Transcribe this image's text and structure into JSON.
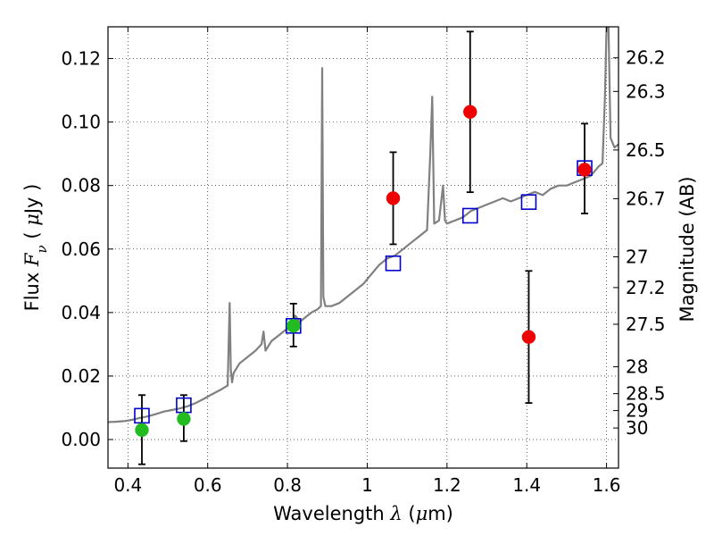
{
  "chart_data": {
    "type": "scatter",
    "xlabel": {
      "pre": "Wavelength  ",
      "sym": "λ",
      "post": " (",
      "mu": "μ",
      "unit": "m)"
    },
    "ylabel": {
      "pre": "Flux  ",
      "sym": "F",
      "sub": "ν",
      "post": "  ( ",
      "mu": "μ",
      "unit": "Jy )"
    },
    "y2label": "Magnitude (AB)",
    "xlim": [
      0.35,
      1.63
    ],
    "ylim": [
      -0.009,
      0.13
    ],
    "grid": true,
    "xticks": [
      0.4,
      0.6,
      0.8,
      1.0,
      1.2,
      1.4,
      1.6
    ],
    "xtick_labels": [
      "0.4",
      "0.6",
      "0.8",
      "1",
      "1.2",
      "1.4",
      "1.6"
    ],
    "yticks": [
      0.0,
      0.02,
      0.04,
      0.06,
      0.08,
      0.1,
      0.12
    ],
    "ytick_labels": [
      "0.00",
      "0.02",
      "0.04",
      "0.06",
      "0.08",
      "0.10",
      "0.12"
    ],
    "mag_ticks": [
      {
        "label": "26.2",
        "mag": 26.2
      },
      {
        "label": "26.3",
        "mag": 26.3
      },
      {
        "label": "26.5",
        "mag": 26.5
      },
      {
        "label": "26.7",
        "mag": 26.7
      },
      {
        "label": "27",
        "mag": 27.0
      },
      {
        "label": "27.2",
        "mag": 27.2
      },
      {
        "label": "27.5",
        "mag": 27.5
      },
      {
        "label": "28",
        "mag": 28.0
      },
      {
        "label": "28.5",
        "mag": 28.5
      },
      {
        "label": "29",
        "mag": 29.0
      },
      {
        "label": "30",
        "mag": 30.0
      }
    ],
    "colors": {
      "sed": "#808080",
      "model": "#0000cc",
      "green": "#22bb22",
      "red": "#ee0000",
      "error": "#000000"
    },
    "series": [
      {
        "marker": "line",
        "color": "#808080",
        "x": [
          0.35,
          0.37,
          0.39,
          0.41,
          0.43,
          0.45,
          0.47,
          0.49,
          0.51,
          0.53,
          0.55,
          0.57,
          0.59,
          0.61,
          0.63,
          0.65,
          0.655,
          0.658,
          0.661,
          0.665,
          0.68,
          0.7,
          0.72,
          0.735,
          0.74,
          0.745,
          0.76,
          0.78,
          0.8,
          0.81,
          0.82,
          0.83,
          0.84,
          0.86,
          0.875,
          0.884,
          0.887,
          0.89,
          0.895,
          0.91,
          0.93,
          0.95,
          0.97,
          0.99,
          1.01,
          1.03,
          1.05,
          1.07,
          1.09,
          1.11,
          1.13,
          1.15,
          1.158,
          1.163,
          1.168,
          1.18,
          1.19,
          1.195,
          1.2,
          1.22,
          1.24,
          1.26,
          1.28,
          1.3,
          1.32,
          1.34,
          1.36,
          1.38,
          1.4,
          1.42,
          1.44,
          1.46,
          1.48,
          1.5,
          1.52,
          1.54,
          1.56,
          1.58,
          1.59,
          1.596,
          1.6,
          1.605,
          1.61,
          1.62,
          1.63
        ],
        "y": [
          0.0055,
          0.0056,
          0.0058,
          0.0062,
          0.0068,
          0.0073,
          0.008,
          0.0088,
          0.0093,
          0.0098,
          0.0105,
          0.0115,
          0.0128,
          0.0142,
          0.0155,
          0.017,
          0.043,
          0.022,
          0.018,
          0.021,
          0.024,
          0.026,
          0.028,
          0.03,
          0.034,
          0.028,
          0.031,
          0.033,
          0.035,
          0.037,
          0.039,
          0.037,
          0.038,
          0.04,
          0.041,
          0.042,
          0.117,
          0.045,
          0.042,
          0.042,
          0.043,
          0.045,
          0.047,
          0.049,
          0.052,
          0.055,
          0.057,
          0.058,
          0.06,
          0.062,
          0.064,
          0.066,
          0.09,
          0.108,
          0.068,
          0.069,
          0.08,
          0.069,
          0.068,
          0.069,
          0.07,
          0.072,
          0.073,
          0.074,
          0.075,
          0.076,
          0.075,
          0.076,
          0.077,
          0.078,
          0.077,
          0.079,
          0.08,
          0.08,
          0.081,
          0.082,
          0.083,
          0.086,
          0.087,
          0.108,
          0.13,
          0.13,
          0.095,
          0.092,
          0.093
        ]
      },
      {
        "marker": "open-square",
        "color": "#0000cc",
        "x": [
          0.435,
          0.54,
          0.815,
          1.065,
          1.258,
          1.405,
          1.545
        ],
        "y": [
          0.0075,
          0.0108,
          0.0358,
          0.0555,
          0.0705,
          0.0748,
          0.0855
        ]
      },
      {
        "marker": "filled-circle",
        "color": "#22bb22",
        "x": [
          0.435,
          0.54,
          0.815
        ],
        "y": [
          0.003,
          0.0065,
          0.0358
        ],
        "yerr_low": [
          0.0108,
          0.007,
          0.0065
        ],
        "yerr_high": [
          0.011,
          0.0075,
          0.007
        ]
      },
      {
        "marker": "filled-circle",
        "color": "#ee0000",
        "x": [
          1.065,
          1.258,
          1.405,
          1.545
        ],
        "y": [
          0.076,
          0.1032,
          0.0323,
          0.085
        ],
        "yerr_low": [
          0.0145,
          0.0253,
          0.0208,
          0.0138
        ],
        "yerr_high": [
          0.0145,
          0.0253,
          0.0208,
          0.0145
        ]
      }
    ]
  }
}
